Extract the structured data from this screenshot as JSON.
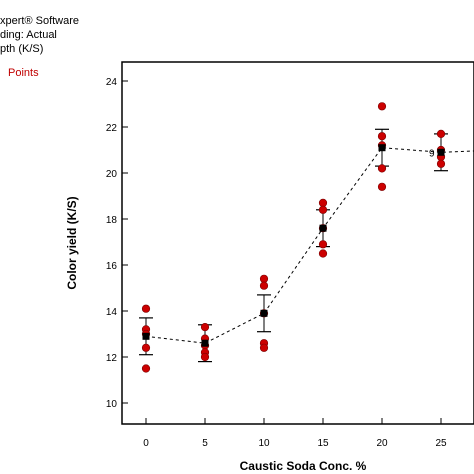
{
  "header": {
    "lines": [
      "xpert® Software",
      "ding: Actual",
      "pth (K/S)"
    ],
    "points_label": "Points"
  },
  "chart_data": {
    "type": "scatter",
    "xlabel": "Caustic Soda Conc. %",
    "ylabel": "Color yield (K/S)",
    "x_ticks": [
      0,
      5,
      10,
      15,
      20,
      25
    ],
    "y_ticks": [
      10,
      12,
      14,
      16,
      18,
      20,
      22,
      24
    ],
    "xlim": [
      -2,
      28
    ],
    "ylim": [
      9,
      25
    ],
    "colors": {
      "points": "#cc0000",
      "mean": "#000000",
      "line": "#000000"
    },
    "design_points": [
      {
        "x": 0,
        "values": [
          14.1,
          13.2,
          13.0,
          12.4,
          11.5
        ]
      },
      {
        "x": 5,
        "values": [
          13.3,
          12.8,
          12.5,
          12.2,
          12.0
        ]
      },
      {
        "x": 10,
        "values": [
          15.4,
          15.1,
          13.9,
          12.6,
          12.4
        ]
      },
      {
        "x": 15,
        "values": [
          18.7,
          18.4,
          17.6,
          16.9,
          16.5
        ]
      },
      {
        "x": 20,
        "values": [
          22.9,
          21.6,
          21.2,
          20.2,
          19.4
        ]
      },
      {
        "x": 25,
        "values": [
          21.7,
          21.0,
          20.7,
          20.4
        ]
      }
    ],
    "predicted": [
      {
        "x": 0,
        "mean": 12.9,
        "low": 12.1,
        "high": 13.7
      },
      {
        "x": 5,
        "mean": 12.6,
        "low": 11.8,
        "high": 13.4
      },
      {
        "x": 10,
        "mean": 13.9,
        "low": 13.1,
        "high": 14.7
      },
      {
        "x": 15,
        "mean": 17.6,
        "low": 16.8,
        "high": 18.4
      },
      {
        "x": 20,
        "mean": 21.1,
        "low": 20.3,
        "high": 21.9
      },
      {
        "x": 25,
        "mean": 20.9,
        "low": 20.1,
        "high": 21.7
      },
      {
        "x": 30,
        "mean": 21.0
      }
    ],
    "replicate_label": {
      "x": 25,
      "y": 20.9,
      "text": "9"
    }
  }
}
